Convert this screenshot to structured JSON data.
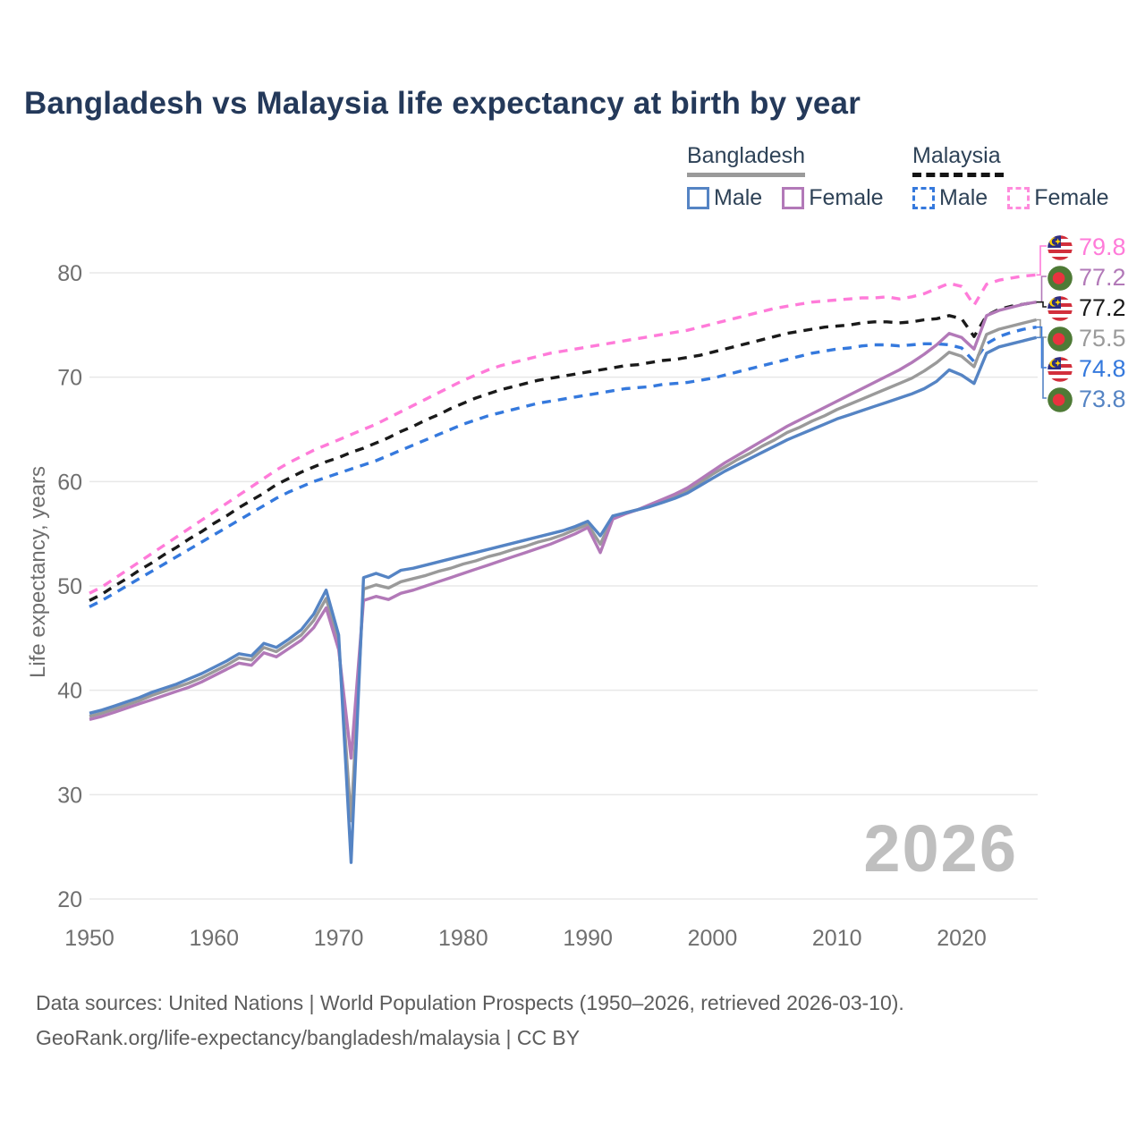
{
  "title": "Bangladesh vs Malaysia life expectancy at birth by year",
  "legend": {
    "bangladesh": {
      "label": "Bangladesh",
      "male": "Male",
      "female": "Female"
    },
    "malaysia": {
      "label": "Malaysia",
      "male": "Male",
      "female": "Female"
    }
  },
  "y_axis": {
    "label": "Life expectancy, years"
  },
  "watermark": "2026",
  "footer": {
    "line1": "Data sources: United Nations | World Population Prospects (1950–2026, retrieved 2026-03-10).",
    "line2": "GeoRank.org/life-expectancy/bangladesh/malaysia | CC BY"
  },
  "colors": {
    "title": "#24395a",
    "axis_text": "#6f6f6f",
    "grid": "#e8e8e8",
    "watermark": "#bfbfbf",
    "footer_text": "#5c5c5c",
    "bangladesh_male": "#5584c4",
    "bangladesh_female": "#b279b8",
    "bangladesh_all": "#9a9a9a",
    "malaysia_male": "#3579dd",
    "malaysia_female": "#ff7bd9",
    "malaysia_all": "#1a1a1a"
  },
  "end_labels": [
    {
      "series": "Malaysia female",
      "flag": "malaysia",
      "value": "79.8",
      "color": "#ff7bd9"
    },
    {
      "series": "Bangladesh female",
      "flag": "bangladesh",
      "value": "77.2",
      "color": "#b279b8"
    },
    {
      "series": "Malaysia all",
      "flag": "malaysia",
      "value": "77.2",
      "color": "#1a1a1a"
    },
    {
      "series": "Bangladesh all",
      "flag": "bangladesh",
      "value": "75.5",
      "color": "#9a9a9a"
    },
    {
      "series": "Malaysia male",
      "flag": "malaysia",
      "value": "74.8",
      "color": "#3579dd"
    },
    {
      "series": "Bangladesh male",
      "flag": "bangladesh",
      "value": "73.8",
      "color": "#5584c4"
    }
  ],
  "chart_data": {
    "type": "line",
    "title": "Bangladesh vs Malaysia life expectancy at birth by year",
    "xlabel": "",
    "ylabel": "Life expectancy, years",
    "xlim": [
      1950,
      2026
    ],
    "ylim": [
      20,
      80
    ],
    "xticks": [
      1950,
      1960,
      1970,
      1980,
      1990,
      2000,
      2010,
      2020
    ],
    "yticks": [
      20,
      30,
      40,
      50,
      60,
      70,
      80
    ],
    "grid": "horizontal",
    "legend_position": "top-right",
    "years": [
      1950,
      1951,
      1952,
      1953,
      1954,
      1955,
      1956,
      1957,
      1958,
      1959,
      1960,
      1961,
      1962,
      1963,
      1964,
      1965,
      1966,
      1967,
      1968,
      1969,
      1970,
      1971,
      1972,
      1973,
      1974,
      1975,
      1976,
      1977,
      1978,
      1979,
      1980,
      1981,
      1982,
      1983,
      1984,
      1985,
      1986,
      1987,
      1988,
      1989,
      1990,
      1991,
      1992,
      1993,
      1994,
      1995,
      1996,
      1997,
      1998,
      1999,
      2000,
      2001,
      2002,
      2003,
      2004,
      2005,
      2006,
      2007,
      2008,
      2009,
      2010,
      2011,
      2012,
      2013,
      2014,
      2015,
      2016,
      2017,
      2018,
      2019,
      2020,
      2021,
      2022,
      2023,
      2024,
      2025,
      2026
    ],
    "series": [
      {
        "name": "Malaysia female",
        "country": "Malaysia",
        "sex": "female",
        "style": "dashed",
        "color": "#ff7bd9",
        "dash": "10 8",
        "end_value": 79.8,
        "values": [
          49.3,
          49.9,
          50.7,
          51.5,
          52.3,
          53.1,
          53.9,
          54.7,
          55.5,
          56.3,
          57.1,
          57.9,
          58.7,
          59.5,
          60.3,
          61.1,
          61.8,
          62.4,
          63.0,
          63.5,
          64.0,
          64.5,
          65.0,
          65.5,
          66.1,
          66.7,
          67.3,
          67.9,
          68.5,
          69.1,
          69.7,
          70.2,
          70.7,
          71.1,
          71.4,
          71.7,
          72.0,
          72.3,
          72.5,
          72.7,
          72.9,
          73.1,
          73.3,
          73.5,
          73.7,
          73.9,
          74.1,
          74.3,
          74.5,
          74.8,
          75.1,
          75.4,
          75.7,
          76.0,
          76.3,
          76.6,
          76.8,
          77.0,
          77.2,
          77.3,
          77.4,
          77.5,
          77.6,
          77.6,
          77.7,
          77.5,
          77.7,
          78.0,
          78.5,
          79.0,
          78.7,
          76.9,
          78.9,
          79.3,
          79.5,
          79.7,
          79.8
        ]
      },
      {
        "name": "Malaysia all",
        "country": "Malaysia",
        "sex": "all",
        "style": "dashed",
        "color": "#1a1a1a",
        "dash": "10 8",
        "end_value": 77.2,
        "values": [
          48.6,
          49.2,
          50.0,
          50.7,
          51.5,
          52.2,
          53.0,
          53.7,
          54.5,
          55.2,
          56.0,
          56.7,
          57.5,
          58.2,
          58.9,
          59.7,
          60.3,
          60.9,
          61.4,
          61.9,
          62.3,
          62.8,
          63.2,
          63.7,
          64.2,
          64.8,
          65.3,
          65.9,
          66.4,
          67.0,
          67.5,
          68.0,
          68.4,
          68.8,
          69.1,
          69.4,
          69.7,
          69.9,
          70.1,
          70.3,
          70.5,
          70.7,
          70.9,
          71.1,
          71.2,
          71.4,
          71.6,
          71.7,
          71.9,
          72.1,
          72.4,
          72.7,
          73.0,
          73.3,
          73.6,
          73.9,
          74.2,
          74.4,
          74.6,
          74.8,
          74.9,
          75.0,
          75.2,
          75.3,
          75.3,
          75.2,
          75.3,
          75.5,
          75.6,
          75.9,
          75.6,
          73.9,
          75.9,
          76.5,
          76.8,
          77.0,
          77.2
        ]
      },
      {
        "name": "Malaysia male",
        "country": "Malaysia",
        "sex": "male",
        "style": "dashed",
        "color": "#3579dd",
        "dash": "10 8",
        "end_value": 74.8,
        "values": [
          48.0,
          48.6,
          49.3,
          50.0,
          50.7,
          51.4,
          52.1,
          52.8,
          53.5,
          54.2,
          54.9,
          55.6,
          56.3,
          57.0,
          57.7,
          58.4,
          59.0,
          59.5,
          60.0,
          60.4,
          60.8,
          61.2,
          61.6,
          62.0,
          62.5,
          63.0,
          63.5,
          64.0,
          64.5,
          65.0,
          65.5,
          65.9,
          66.3,
          66.6,
          66.9,
          67.2,
          67.5,
          67.7,
          67.9,
          68.1,
          68.3,
          68.5,
          68.7,
          68.9,
          69.0,
          69.1,
          69.3,
          69.4,
          69.5,
          69.7,
          69.9,
          70.2,
          70.5,
          70.8,
          71.1,
          71.4,
          71.7,
          72.0,
          72.3,
          72.5,
          72.7,
          72.8,
          73.0,
          73.1,
          73.1,
          73.0,
          73.1,
          73.2,
          73.2,
          73.1,
          72.8,
          71.5,
          73.2,
          73.9,
          74.3,
          74.6,
          74.8
        ]
      },
      {
        "name": "Bangladesh all",
        "country": "Bangladesh",
        "sex": "all",
        "style": "solid",
        "color": "#9a9a9a",
        "dash": null,
        "end_value": 75.5,
        "values": [
          37.5,
          37.8,
          38.2,
          38.6,
          39.0,
          39.5,
          39.9,
          40.3,
          40.7,
          41.2,
          41.8,
          42.4,
          43.1,
          42.9,
          44.1,
          43.7,
          44.5,
          45.3,
          46.7,
          48.8,
          44.6,
          27.5,
          49.7,
          50.1,
          49.8,
          50.4,
          50.7,
          51.0,
          51.4,
          51.7,
          52.1,
          52.4,
          52.8,
          53.1,
          53.5,
          53.8,
          54.2,
          54.5,
          54.9,
          55.4,
          55.9,
          54.0,
          56.6,
          57.0,
          57.3,
          57.7,
          58.2,
          58.6,
          59.2,
          59.9,
          60.7,
          61.4,
          62.1,
          62.7,
          63.4,
          64.0,
          64.7,
          65.2,
          65.8,
          66.3,
          66.9,
          67.4,
          67.9,
          68.4,
          68.9,
          69.4,
          69.9,
          70.6,
          71.4,
          72.4,
          72.0,
          71.0,
          74.1,
          74.6,
          74.9,
          75.2,
          75.5
        ]
      },
      {
        "name": "Bangladesh female",
        "country": "Bangladesh",
        "sex": "female",
        "style": "solid",
        "color": "#b279b8",
        "dash": null,
        "end_value": 77.2,
        "values": [
          37.2,
          37.5,
          37.9,
          38.3,
          38.7,
          39.1,
          39.5,
          39.9,
          40.3,
          40.8,
          41.4,
          42.0,
          42.6,
          42.4,
          43.6,
          43.2,
          44.0,
          44.8,
          46.0,
          47.9,
          43.9,
          33.5,
          48.6,
          49.0,
          48.7,
          49.3,
          49.6,
          50.0,
          50.4,
          50.8,
          51.2,
          51.6,
          52.0,
          52.4,
          52.8,
          53.2,
          53.6,
          54.0,
          54.5,
          55.0,
          55.6,
          53.2,
          56.4,
          56.9,
          57.3,
          57.8,
          58.3,
          58.8,
          59.4,
          60.2,
          61.0,
          61.8,
          62.5,
          63.2,
          63.9,
          64.6,
          65.3,
          65.9,
          66.5,
          67.1,
          67.7,
          68.3,
          68.9,
          69.5,
          70.1,
          70.7,
          71.4,
          72.2,
          73.1,
          74.2,
          73.8,
          72.7,
          75.9,
          76.4,
          76.7,
          77.0,
          77.2
        ]
      },
      {
        "name": "Bangladesh male",
        "country": "Bangladesh",
        "sex": "male",
        "style": "solid",
        "color": "#5584c4",
        "dash": null,
        "end_value": 73.8,
        "values": [
          37.8,
          38.1,
          38.5,
          38.9,
          39.3,
          39.8,
          40.2,
          40.6,
          41.1,
          41.6,
          42.2,
          42.8,
          43.5,
          43.3,
          44.5,
          44.1,
          44.9,
          45.8,
          47.3,
          49.6,
          45.3,
          23.5,
          50.8,
          51.2,
          50.8,
          51.5,
          51.7,
          52.0,
          52.3,
          52.6,
          52.9,
          53.2,
          53.5,
          53.8,
          54.1,
          54.4,
          54.7,
          55.0,
          55.3,
          55.7,
          56.2,
          54.8,
          56.7,
          57.0,
          57.3,
          57.6,
          58.0,
          58.4,
          58.9,
          59.6,
          60.3,
          61.0,
          61.6,
          62.2,
          62.8,
          63.4,
          64.0,
          64.5,
          65.0,
          65.5,
          66.0,
          66.4,
          66.8,
          67.2,
          67.6,
          68.0,
          68.4,
          68.9,
          69.6,
          70.7,
          70.2,
          69.4,
          72.3,
          72.9,
          73.2,
          73.5,
          73.8
        ]
      }
    ]
  }
}
